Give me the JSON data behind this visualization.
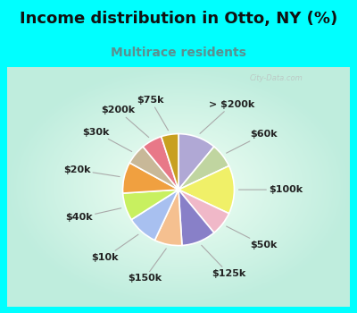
{
  "title": "Income distribution in Otto, NY (%)",
  "subtitle": "Multirace residents",
  "bg_cyan": "#00FFFF",
  "bg_chart_center": "#f0faf5",
  "bg_chart_edge": "#c8ede0",
  "labels": [
    "> $200k",
    "$60k",
    "$100k",
    "$50k",
    "$125k",
    "$150k",
    "$10k",
    "$40k",
    "$20k",
    "$30k",
    "$200k",
    "$75k"
  ],
  "values": [
    11,
    7,
    14,
    7,
    10,
    8,
    9,
    8,
    9,
    6,
    6,
    5
  ],
  "colors": [
    "#b0a8d5",
    "#c0d5a0",
    "#f0f068",
    "#f0b8c8",
    "#8880c8",
    "#f5c090",
    "#a8c0f0",
    "#c8f060",
    "#f0a040",
    "#c8b898",
    "#e87888",
    "#c8a020"
  ],
  "title_fontsize": 13,
  "subtitle_fontsize": 10,
  "label_fontsize": 8,
  "wedge_lw": 1.2,
  "wedge_edge": "#ffffff"
}
